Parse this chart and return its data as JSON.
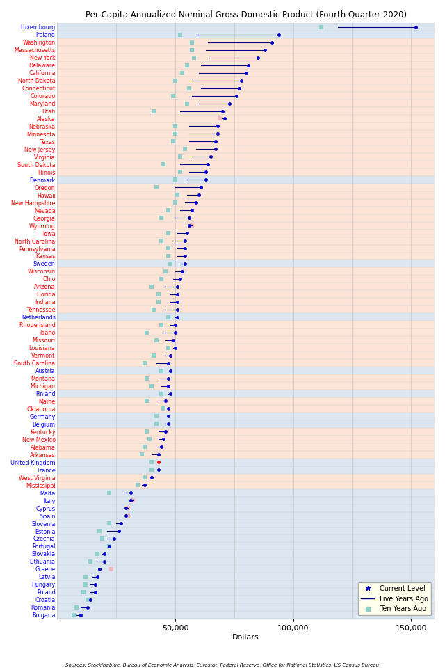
{
  "title": "Per Capita Annualized Nominal Gross Domestic Product (Fourth Quarter 2020)",
  "xlabel": "Dollars",
  "source": "Sources: Stockingblue, Bureau of Economic Analysis, Eurostat, Federal Reserve, Office for National Statistics, US Census Bureau",
  "xlim": [
    0,
    160000
  ],
  "xticks": [
    50000,
    100000,
    150000
  ],
  "xticklabels": [
    "50,000",
    "100,000",
    "150,000"
  ],
  "entries": [
    {
      "label": "Luxembourg",
      "eu": true,
      "current": 152000,
      "five": 119000,
      "ten": 112000,
      "ten_pink": false
    },
    {
      "label": "Ireland",
      "eu": true,
      "current": 94000,
      "five": 59000,
      "ten": 52000,
      "ten_pink": false
    },
    {
      "label": "Washington",
      "eu": false,
      "current": 91000,
      "five": 64000,
      "ten": 57000,
      "ten_pink": false
    },
    {
      "label": "Massachusetts",
      "eu": false,
      "current": 88000,
      "five": 63000,
      "ten": 57000,
      "ten_pink": false
    },
    {
      "label": "New York",
      "eu": false,
      "current": 85000,
      "five": 65000,
      "ten": 58000,
      "ten_pink": false
    },
    {
      "label": "Delaware",
      "eu": false,
      "current": 81000,
      "five": 61000,
      "ten": 55000,
      "ten_pink": false
    },
    {
      "label": "California",
      "eu": false,
      "current": 80000,
      "five": 60000,
      "ten": 53000,
      "ten_pink": false
    },
    {
      "label": "North Dakota",
      "eu": false,
      "current": 78000,
      "five": 57000,
      "ten": 50000,
      "ten_pink": false
    },
    {
      "label": "Connecticut",
      "eu": false,
      "current": 77000,
      "five": 61000,
      "ten": 56000,
      "ten_pink": false
    },
    {
      "label": "Colorado",
      "eu": false,
      "current": 76000,
      "five": 57000,
      "ten": 49000,
      "ten_pink": false
    },
    {
      "label": "Maryland",
      "eu": false,
      "current": 73000,
      "five": 60000,
      "ten": 55000,
      "ten_pink": false
    },
    {
      "label": "Utah",
      "eu": false,
      "current": 70000,
      "five": 52000,
      "ten": 41000,
      "ten_pink": false
    },
    {
      "label": "Alaska",
      "eu": false,
      "current": 71000,
      "five": 70000,
      "ten": 69000,
      "ten_pink": true
    },
    {
      "label": "Nebraska",
      "eu": false,
      "current": 68000,
      "five": 56000,
      "ten": 50000,
      "ten_pink": false
    },
    {
      "label": "Minnesota",
      "eu": false,
      "current": 68000,
      "five": 56000,
      "ten": 50000,
      "ten_pink": false
    },
    {
      "label": "Texas",
      "eu": false,
      "current": 67000,
      "five": 56000,
      "ten": 49000,
      "ten_pink": false
    },
    {
      "label": "New Jersey",
      "eu": false,
      "current": 67000,
      "five": 59000,
      "ten": 54000,
      "ten_pink": false
    },
    {
      "label": "Virginia",
      "eu": false,
      "current": 65000,
      "five": 57000,
      "ten": 52000,
      "ten_pink": false
    },
    {
      "label": "South Dakota",
      "eu": false,
      "current": 64000,
      "five": 52000,
      "ten": 45000,
      "ten_pink": false
    },
    {
      "label": "Illinois",
      "eu": false,
      "current": 63000,
      "five": 56000,
      "ten": 52000,
      "ten_pink": false
    },
    {
      "label": "Denmark",
      "eu": true,
      "current": 63000,
      "five": 55000,
      "ten": 50000,
      "ten_pink": false
    },
    {
      "label": "Oregon",
      "eu": false,
      "current": 61000,
      "five": 50000,
      "ten": 42000,
      "ten_pink": false
    },
    {
      "label": "Hawaii",
      "eu": false,
      "current": 60000,
      "five": 55000,
      "ten": 51000,
      "ten_pink": false
    },
    {
      "label": "New Hampshire",
      "eu": false,
      "current": 59000,
      "five": 54000,
      "ten": 50000,
      "ten_pink": false
    },
    {
      "label": "Nevada",
      "eu": false,
      "current": 57000,
      "five": 52000,
      "ten": 47000,
      "ten_pink": false
    },
    {
      "label": "Georgia",
      "eu": false,
      "current": 56000,
      "five": 50000,
      "ten": 44000,
      "ten_pink": false
    },
    {
      "label": "Wyoming",
      "eu": false,
      "current": 56000,
      "five": 57000,
      "ten": 57000,
      "ten_pink": true
    },
    {
      "label": "Iowa",
      "eu": false,
      "current": 55000,
      "five": 51000,
      "ten": 47000,
      "ten_pink": false
    },
    {
      "label": "North Carolina",
      "eu": false,
      "current": 54000,
      "five": 49000,
      "ten": 44000,
      "ten_pink": false
    },
    {
      "label": "Pennsylvania",
      "eu": false,
      "current": 54000,
      "five": 51000,
      "ten": 47000,
      "ten_pink": false
    },
    {
      "label": "Kansas",
      "eu": false,
      "current": 54000,
      "five": 51000,
      "ten": 47000,
      "ten_pink": false
    },
    {
      "label": "Sweden",
      "eu": true,
      "current": 54000,
      "five": 52000,
      "ten": 48000,
      "ten_pink": false
    },
    {
      "label": "Wisconsin",
      "eu": false,
      "current": 53000,
      "five": 50000,
      "ten": 46000,
      "ten_pink": false
    },
    {
      "label": "Ohio",
      "eu": false,
      "current": 52000,
      "five": 49000,
      "ten": 44000,
      "ten_pink": false
    },
    {
      "label": "Arizona",
      "eu": false,
      "current": 51000,
      "five": 46000,
      "ten": 40000,
      "ten_pink": false
    },
    {
      "label": "Florida",
      "eu": false,
      "current": 51000,
      "five": 48000,
      "ten": 43000,
      "ten_pink": false
    },
    {
      "label": "Indiana",
      "eu": false,
      "current": 51000,
      "five": 48000,
      "ten": 43000,
      "ten_pink": false
    },
    {
      "label": "Tennessee",
      "eu": false,
      "current": 51000,
      "five": 46000,
      "ten": 41000,
      "ten_pink": false
    },
    {
      "label": "Netherlands",
      "eu": true,
      "current": 51000,
      "five": 50000,
      "ten": 47000,
      "ten_pink": false
    },
    {
      "label": "Rhode Island",
      "eu": false,
      "current": 50000,
      "five": 48000,
      "ten": 44000,
      "ten_pink": false
    },
    {
      "label": "Idaho",
      "eu": false,
      "current": 50000,
      "five": 45000,
      "ten": 38000,
      "ten_pink": false
    },
    {
      "label": "Missouri",
      "eu": false,
      "current": 49000,
      "five": 46000,
      "ten": 42000,
      "ten_pink": false
    },
    {
      "label": "Louisiana",
      "eu": false,
      "current": 50000,
      "five": 49000,
      "ten": 47000,
      "ten_pink": false
    },
    {
      "label": "Vermont",
      "eu": false,
      "current": 48000,
      "five": 46000,
      "ten": 41000,
      "ten_pink": false
    },
    {
      "label": "South Carolina",
      "eu": false,
      "current": 47000,
      "five": 42000,
      "ten": 37000,
      "ten_pink": false
    },
    {
      "label": "Austria",
      "eu": true,
      "current": 48000,
      "five": 48000,
      "ten": 44000,
      "ten_pink": false
    },
    {
      "label": "Montana",
      "eu": false,
      "current": 47000,
      "five": 43000,
      "ten": 38000,
      "ten_pink": false
    },
    {
      "label": "Michigan",
      "eu": false,
      "current": 47000,
      "five": 44000,
      "ten": 40000,
      "ten_pink": false
    },
    {
      "label": "Finland",
      "eu": true,
      "current": 48000,
      "five": 47000,
      "ten": 44000,
      "ten_pink": false
    },
    {
      "label": "Maine",
      "eu": false,
      "current": 46000,
      "five": 43000,
      "ten": 38000,
      "ten_pink": false
    },
    {
      "label": "Oklahoma",
      "eu": false,
      "current": 47000,
      "five": 47000,
      "ten": 45000,
      "ten_pink": false
    },
    {
      "label": "Germany",
      "eu": true,
      "current": 47000,
      "five": 47000,
      "ten": 42000,
      "ten_pink": false
    },
    {
      "label": "Belgium",
      "eu": true,
      "current": 47000,
      "five": 46000,
      "ten": 42000,
      "ten_pink": false
    },
    {
      "label": "Kentucky",
      "eu": false,
      "current": 46000,
      "five": 43000,
      "ten": 38000,
      "ten_pink": false
    },
    {
      "label": "New Mexico",
      "eu": false,
      "current": 45000,
      "five": 43000,
      "ten": 39000,
      "ten_pink": false
    },
    {
      "label": "Alabama",
      "eu": false,
      "current": 44000,
      "five": 42000,
      "ten": 37000,
      "ten_pink": false
    },
    {
      "label": "Arkansas",
      "eu": false,
      "current": 43000,
      "five": 40000,
      "ten": 36000,
      "ten_pink": false
    },
    {
      "label": "United Kingdom",
      "eu": true,
      "current": 43000,
      "five": 43000,
      "ten": 40000,
      "ten_pink": false,
      "current_red": true
    },
    {
      "label": "France",
      "eu": true,
      "current": 43000,
      "five": 43000,
      "ten": 40000,
      "ten_pink": false
    },
    {
      "label": "West Virginia",
      "eu": false,
      "current": 40000,
      "five": 40000,
      "ten": 37000,
      "ten_pink": false
    },
    {
      "label": "Mississippi",
      "eu": false,
      "current": 37000,
      "five": 36000,
      "ten": 34000,
      "ten_pink": false
    },
    {
      "label": "Malta",
      "eu": true,
      "current": 31000,
      "five": 29000,
      "ten": 22000,
      "ten_pink": false
    },
    {
      "label": "Italy",
      "eu": true,
      "current": 31000,
      "five": 32000,
      "ten": 32000,
      "ten_pink": true
    },
    {
      "label": "Cyprus",
      "eu": true,
      "current": 29000,
      "five": 30000,
      "ten": 30000,
      "ten_pink": true
    },
    {
      "label": "Spain",
      "eu": true,
      "current": 29000,
      "five": 30000,
      "ten": 30000,
      "ten_pink": true
    },
    {
      "label": "Slovenia",
      "eu": true,
      "current": 27000,
      "five": 25000,
      "ten": 22000,
      "ten_pink": false
    },
    {
      "label": "Estonia",
      "eu": true,
      "current": 26000,
      "five": 21000,
      "ten": 18000,
      "ten_pink": false
    },
    {
      "label": "Czechia",
      "eu": true,
      "current": 24000,
      "five": 21000,
      "ten": 19000,
      "ten_pink": false
    },
    {
      "label": "Portugal",
      "eu": true,
      "current": 22000,
      "five": 22000,
      "ten": 22000,
      "ten_pink": false
    },
    {
      "label": "Slovakia",
      "eu": true,
      "current": 20000,
      "five": 19000,
      "ten": 17000,
      "ten_pink": false
    },
    {
      "label": "Lithuania",
      "eu": true,
      "current": 20000,
      "five": 17000,
      "ten": 14000,
      "ten_pink": false
    },
    {
      "label": "Greece",
      "eu": true,
      "current": 18000,
      "five": 18000,
      "ten": 23000,
      "ten_pink": true
    },
    {
      "label": "Latvia",
      "eu": true,
      "current": 17000,
      "five": 15000,
      "ten": 12000,
      "ten_pink": false
    },
    {
      "label": "Hungary",
      "eu": true,
      "current": 16000,
      "five": 14000,
      "ten": 12000,
      "ten_pink": false
    },
    {
      "label": "Poland",
      "eu": true,
      "current": 16000,
      "five": 14000,
      "ten": 11000,
      "ten_pink": false
    },
    {
      "label": "Croatia",
      "eu": true,
      "current": 14000,
      "five": 14000,
      "ten": 13000,
      "ten_pink": false
    },
    {
      "label": "Romania",
      "eu": true,
      "current": 13000,
      "five": 10000,
      "ten": 8000,
      "ten_pink": false
    },
    {
      "label": "Bulgaria",
      "eu": true,
      "current": 10000,
      "five": 8000,
      "ten": 7000,
      "ten_pink": false
    }
  ]
}
